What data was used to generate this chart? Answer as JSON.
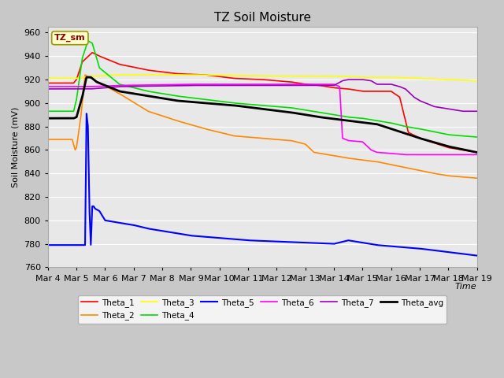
{
  "title": "TZ Soil Moisture",
  "ylabel": "Soil Moisture (mV)",
  "xlabel": "Time",
  "ylim": [
    760,
    965
  ],
  "yticks": [
    760,
    780,
    800,
    820,
    840,
    860,
    880,
    900,
    920,
    940,
    960
  ],
  "fig_bg": "#c8c8c8",
  "plot_bg": "#e8e8e8",
  "annotation_label": "TZ_sm",
  "annotation_color": "#8b0000",
  "annotation_bg": "#ffffcc",
  "annotation_edge": "#999900",
  "xtick_labels": [
    "Mar 4",
    "Mar 5",
    "Mar 6",
    "Mar 7",
    "Mar 8",
    "Mar 9",
    "Mar 10",
    "Mar 11",
    "Mar 12",
    "Mar 13",
    "Mar 14",
    "Mar 15",
    "Mar 16",
    "Mar 17",
    "Mar 18",
    "Mar 19"
  ],
  "series": {
    "Theta_1": {
      "color": "#ff0000",
      "lw": 1.2
    },
    "Theta_2": {
      "color": "#ff8800",
      "lw": 1.2
    },
    "Theta_3": {
      "color": "#ffff00",
      "lw": 1.2
    },
    "Theta_4": {
      "color": "#00dd00",
      "lw": 1.2
    },
    "Theta_5": {
      "color": "#0000ff",
      "lw": 1.5
    },
    "Theta_6": {
      "color": "#ff00ff",
      "lw": 1.2
    },
    "Theta_7": {
      "color": "#9900bb",
      "lw": 1.2
    },
    "Theta_avg": {
      "color": "#000000",
      "lw": 2.0
    }
  }
}
